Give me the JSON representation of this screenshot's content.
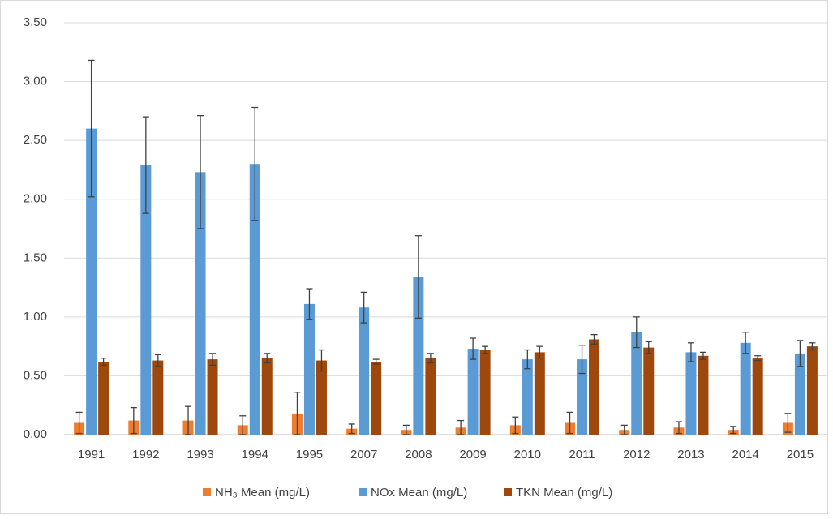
{
  "chart_data": {
    "type": "bar",
    "categories": [
      "1991",
      "1992",
      "1993",
      "1994",
      "1995",
      "2007",
      "2008",
      "2009",
      "2010",
      "2011",
      "2012",
      "2013",
      "2014",
      "2015"
    ],
    "series": [
      {
        "name": "NH₃ Mean (mg/L)",
        "color": "#ed7d31",
        "values": [
          0.1,
          0.12,
          0.12,
          0.08,
          0.18,
          0.05,
          0.04,
          0.06,
          0.08,
          0.1,
          0.04,
          0.06,
          0.04,
          0.1
        ],
        "errors": [
          0.09,
          0.11,
          0.12,
          0.08,
          0.18,
          0.04,
          0.04,
          0.06,
          0.07,
          0.09,
          0.04,
          0.05,
          0.03,
          0.08
        ]
      },
      {
        "name": "NOx Mean (mg/L)",
        "color": "#5b9bd5",
        "values": [
          2.6,
          2.29,
          2.23,
          2.3,
          1.11,
          1.08,
          1.34,
          0.73,
          0.64,
          0.64,
          0.87,
          0.7,
          0.78,
          0.69
        ],
        "errors": [
          0.58,
          0.41,
          0.48,
          0.48,
          0.13,
          0.13,
          0.35,
          0.09,
          0.08,
          0.12,
          0.13,
          0.08,
          0.09,
          0.11
        ]
      },
      {
        "name": "TKN Mean (mg/L)",
        "color": "#9e480e",
        "values": [
          0.62,
          0.63,
          0.64,
          0.65,
          0.63,
          0.62,
          0.65,
          0.72,
          0.7,
          0.81,
          0.74,
          0.67,
          0.65,
          0.75
        ],
        "errors": [
          0.03,
          0.05,
          0.05,
          0.04,
          0.09,
          0.02,
          0.04,
          0.03,
          0.05,
          0.04,
          0.05,
          0.03,
          0.02,
          0.03
        ]
      }
    ],
    "ylim": [
      0,
      3.5
    ],
    "yticks": [
      {
        "value": 0,
        "label": "0.00"
      },
      {
        "value": 0.5,
        "label": "0.50"
      },
      {
        "value": 1,
        "label": "1.00"
      },
      {
        "value": 1.5,
        "label": "1.50"
      },
      {
        "value": 2,
        "label": "2.00"
      },
      {
        "value": 2.5,
        "label": "2.50"
      },
      {
        "value": 3,
        "label": "3.00"
      },
      {
        "value": 3.5,
        "label": "3.50"
      }
    ],
    "grid": true,
    "legend": "bottom"
  }
}
